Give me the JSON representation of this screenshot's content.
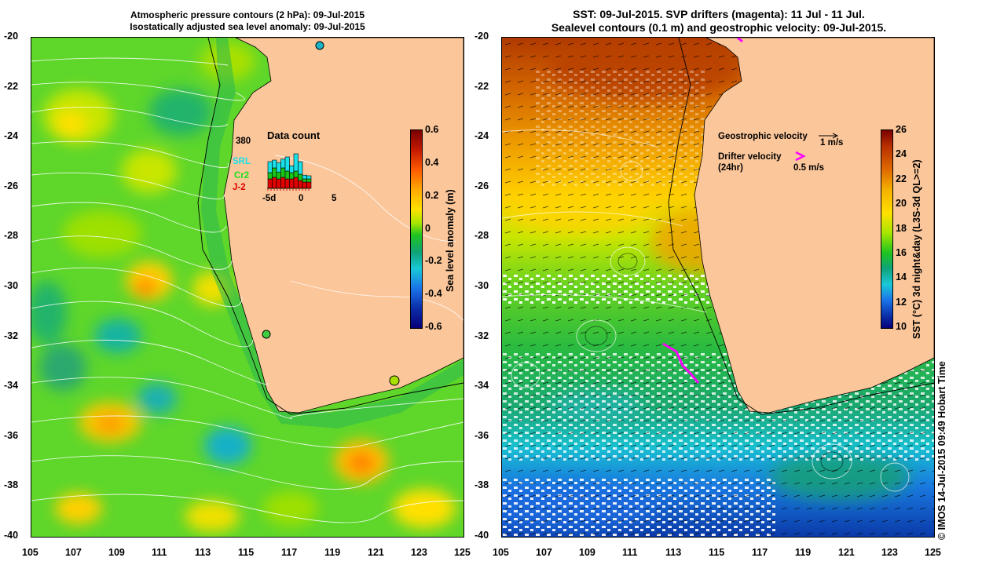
{
  "left_panel": {
    "title_line1": "Atmospheric pressure contours (2 hPa): 09-Jul-2015",
    "title_line2": "Isostatically adjusted sea level anomaly: 09-Jul-2015",
    "colorbar": {
      "title": "Sea level anomaly (m)",
      "ticks": [
        "0.6",
        "0.4",
        "0.2",
        "0",
        "-0.2",
        "-0.4",
        "-0.6"
      ]
    },
    "inset": {
      "title": "Data count",
      "count": "380",
      "satellites": [
        {
          "name": "SRL",
          "color": "#19e0e8"
        },
        {
          "name": "Cr2",
          "color": "#19c419"
        },
        {
          "name": "J-2",
          "color": "#e00000"
        }
      ],
      "xticks": [
        "-5d",
        "0",
        "5"
      ],
      "bars_sat1": [
        0.35,
        0.25,
        0.3,
        0.28,
        0.45,
        0.22,
        0.55,
        0.4,
        0.12,
        0.1
      ],
      "bars_sat2": [
        0.2,
        0.3,
        0.22,
        0.3,
        0.25,
        0.2,
        0.2,
        0.2,
        0.1,
        0.1
      ],
      "bars_sat3": [
        0.3,
        0.35,
        0.3,
        0.35,
        0.3,
        0.3,
        0.35,
        0.25,
        0.2,
        0.2
      ]
    }
  },
  "right_panel": {
    "title_line1": "SST: 09-Jul-2015. SVP drifters (magenta): 11 Jul - 11 Jul.",
    "title_line2": "Sealevel contours (0.1 m) and geostrophic velocity: 09-Jul-2015.",
    "colorbar": {
      "title": "SST (°C) 3d night&day (L3S-3d QL>=2)",
      "ticks": [
        "26",
        "24",
        "22",
        "20",
        "18",
        "16",
        "14",
        "12",
        "10"
      ]
    },
    "legend": {
      "geo_label": "Geostrophic velocity",
      "geo_value": "1 m/s",
      "drifter_label": "Drifter velocity",
      "drifter_sub": "(24hr)",
      "drifter_value": "0.5 m/s"
    }
  },
  "axes": {
    "lat_ticks": [
      "-20",
      "-22",
      "-24",
      "-26",
      "-28",
      "-30",
      "-32",
      "-34",
      "-36",
      "-38",
      "-40"
    ],
    "lon_ticks": [
      "105",
      "107",
      "109",
      "111",
      "113",
      "115",
      "117",
      "119",
      "121",
      "123",
      "125"
    ]
  },
  "credit": "© IMOS 14-Jul-2015 09:49 Hobart Time",
  "colors": {
    "land": "#fbc69a",
    "ssla_background": "#5ed62a",
    "drifter": "#ff00ff"
  }
}
